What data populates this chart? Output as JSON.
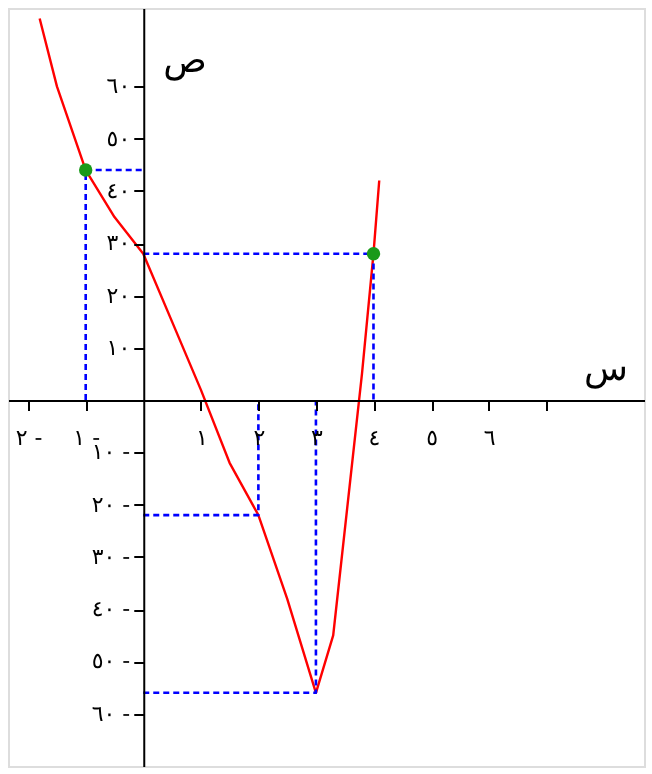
{
  "chart_data": {
    "type": "line",
    "xlabel": "س",
    "ylabel": "ص",
    "xlim": [
      -2.35,
      8.7
    ],
    "ylim": [
      -70,
      75
    ],
    "xticks": [
      {
        "value": -2,
        "label": "٢ -"
      },
      {
        "value": -1,
        "label": "١ -"
      },
      {
        "value": 1,
        "label": "١"
      },
      {
        "value": 2,
        "label": "٢"
      },
      {
        "value": 3,
        "label": "٣"
      },
      {
        "value": 4,
        "label": "٤"
      },
      {
        "value": 5,
        "label": "٥"
      },
      {
        "value": 6,
        "label": "٦"
      },
      {
        "value": 7,
        "label": null
      }
    ],
    "yticks": [
      {
        "value": -60,
        "label": "٦٠ -"
      },
      {
        "value": -50,
        "label": "٥٠ -"
      },
      {
        "value": -40,
        "label": "٤٠ -"
      },
      {
        "value": -30,
        "label": "٣٠ -"
      },
      {
        "value": -20,
        "label": "٢٠ -"
      },
      {
        "value": -10,
        "label": "١٠ -"
      },
      {
        "value": 10,
        "label": "١٠"
      },
      {
        "value": 20,
        "label": "٢٠"
      },
      {
        "value": 30,
        "label": "٣٠"
      },
      {
        "value": 40,
        "label": "٤٠"
      },
      {
        "value": 50,
        "label": "٥٠"
      },
      {
        "value": 60,
        "label": "٦٠"
      }
    ],
    "grid": false,
    "series": [
      {
        "type": "line",
        "color": "#ff0000",
        "line_style": "solid",
        "x": [
          -1.8,
          -1.5,
          -1,
          -0.5,
          0,
          0.5,
          1,
          1.5,
          2,
          2.5,
          3,
          3.3,
          3.6,
          3.8,
          4,
          4.1
        ],
        "values": [
          73,
          60,
          44,
          35,
          28,
          15,
          2,
          -12,
          -22,
          -38,
          -56,
          -45,
          -15,
          5,
          28,
          42
        ]
      },
      {
        "type": "line",
        "color": "#0000ff",
        "line_style": "dashed",
        "x": [
          -1,
          -1,
          0
        ],
        "values": [
          0,
          44,
          44
        ]
      },
      {
        "type": "line",
        "color": "#0000ff",
        "line_style": "dashed",
        "x": [
          0,
          4,
          4
        ],
        "values": [
          28,
          28,
          0
        ]
      },
      {
        "type": "line",
        "color": "#0000ff",
        "line_style": "dashed",
        "x": [
          0,
          2,
          2
        ],
        "values": [
          -22,
          -22,
          0
        ]
      },
      {
        "type": "line",
        "color": "#0000ff",
        "line_style": "dashed",
        "x": [
          0,
          3,
          3
        ],
        "values": [
          -56,
          -56,
          0
        ]
      },
      {
        "type": "scatter",
        "color": "#1a9a1a",
        "marker": "circle",
        "x": [
          -1,
          4
        ],
        "values": [
          44,
          28
        ]
      }
    ]
  }
}
